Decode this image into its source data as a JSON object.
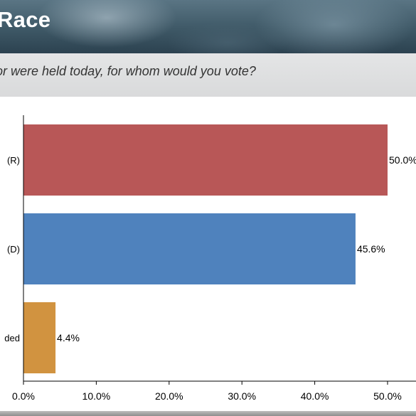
{
  "header": {
    "title": "Race"
  },
  "question": {
    "text": "or were held today, for whom would you vote?"
  },
  "chart_data": {
    "type": "bar",
    "orientation": "horizontal",
    "categories": [
      "(R)",
      "(D)",
      "ded"
    ],
    "values": [
      50.0,
      45.6,
      4.4
    ],
    "value_labels": [
      "50.0%",
      "45.6%",
      "4.4%"
    ],
    "colors": [
      "#b85757",
      "#4f82bd",
      "#d19340"
    ],
    "xlim": [
      0,
      53
    ],
    "x_ticks": [
      0,
      10,
      20,
      30,
      40,
      50
    ],
    "x_tick_labels": [
      "0.0%",
      "10.0%",
      "20.0%",
      "30.0%",
      "40.0%",
      "50.0%"
    ],
    "grid": false
  }
}
